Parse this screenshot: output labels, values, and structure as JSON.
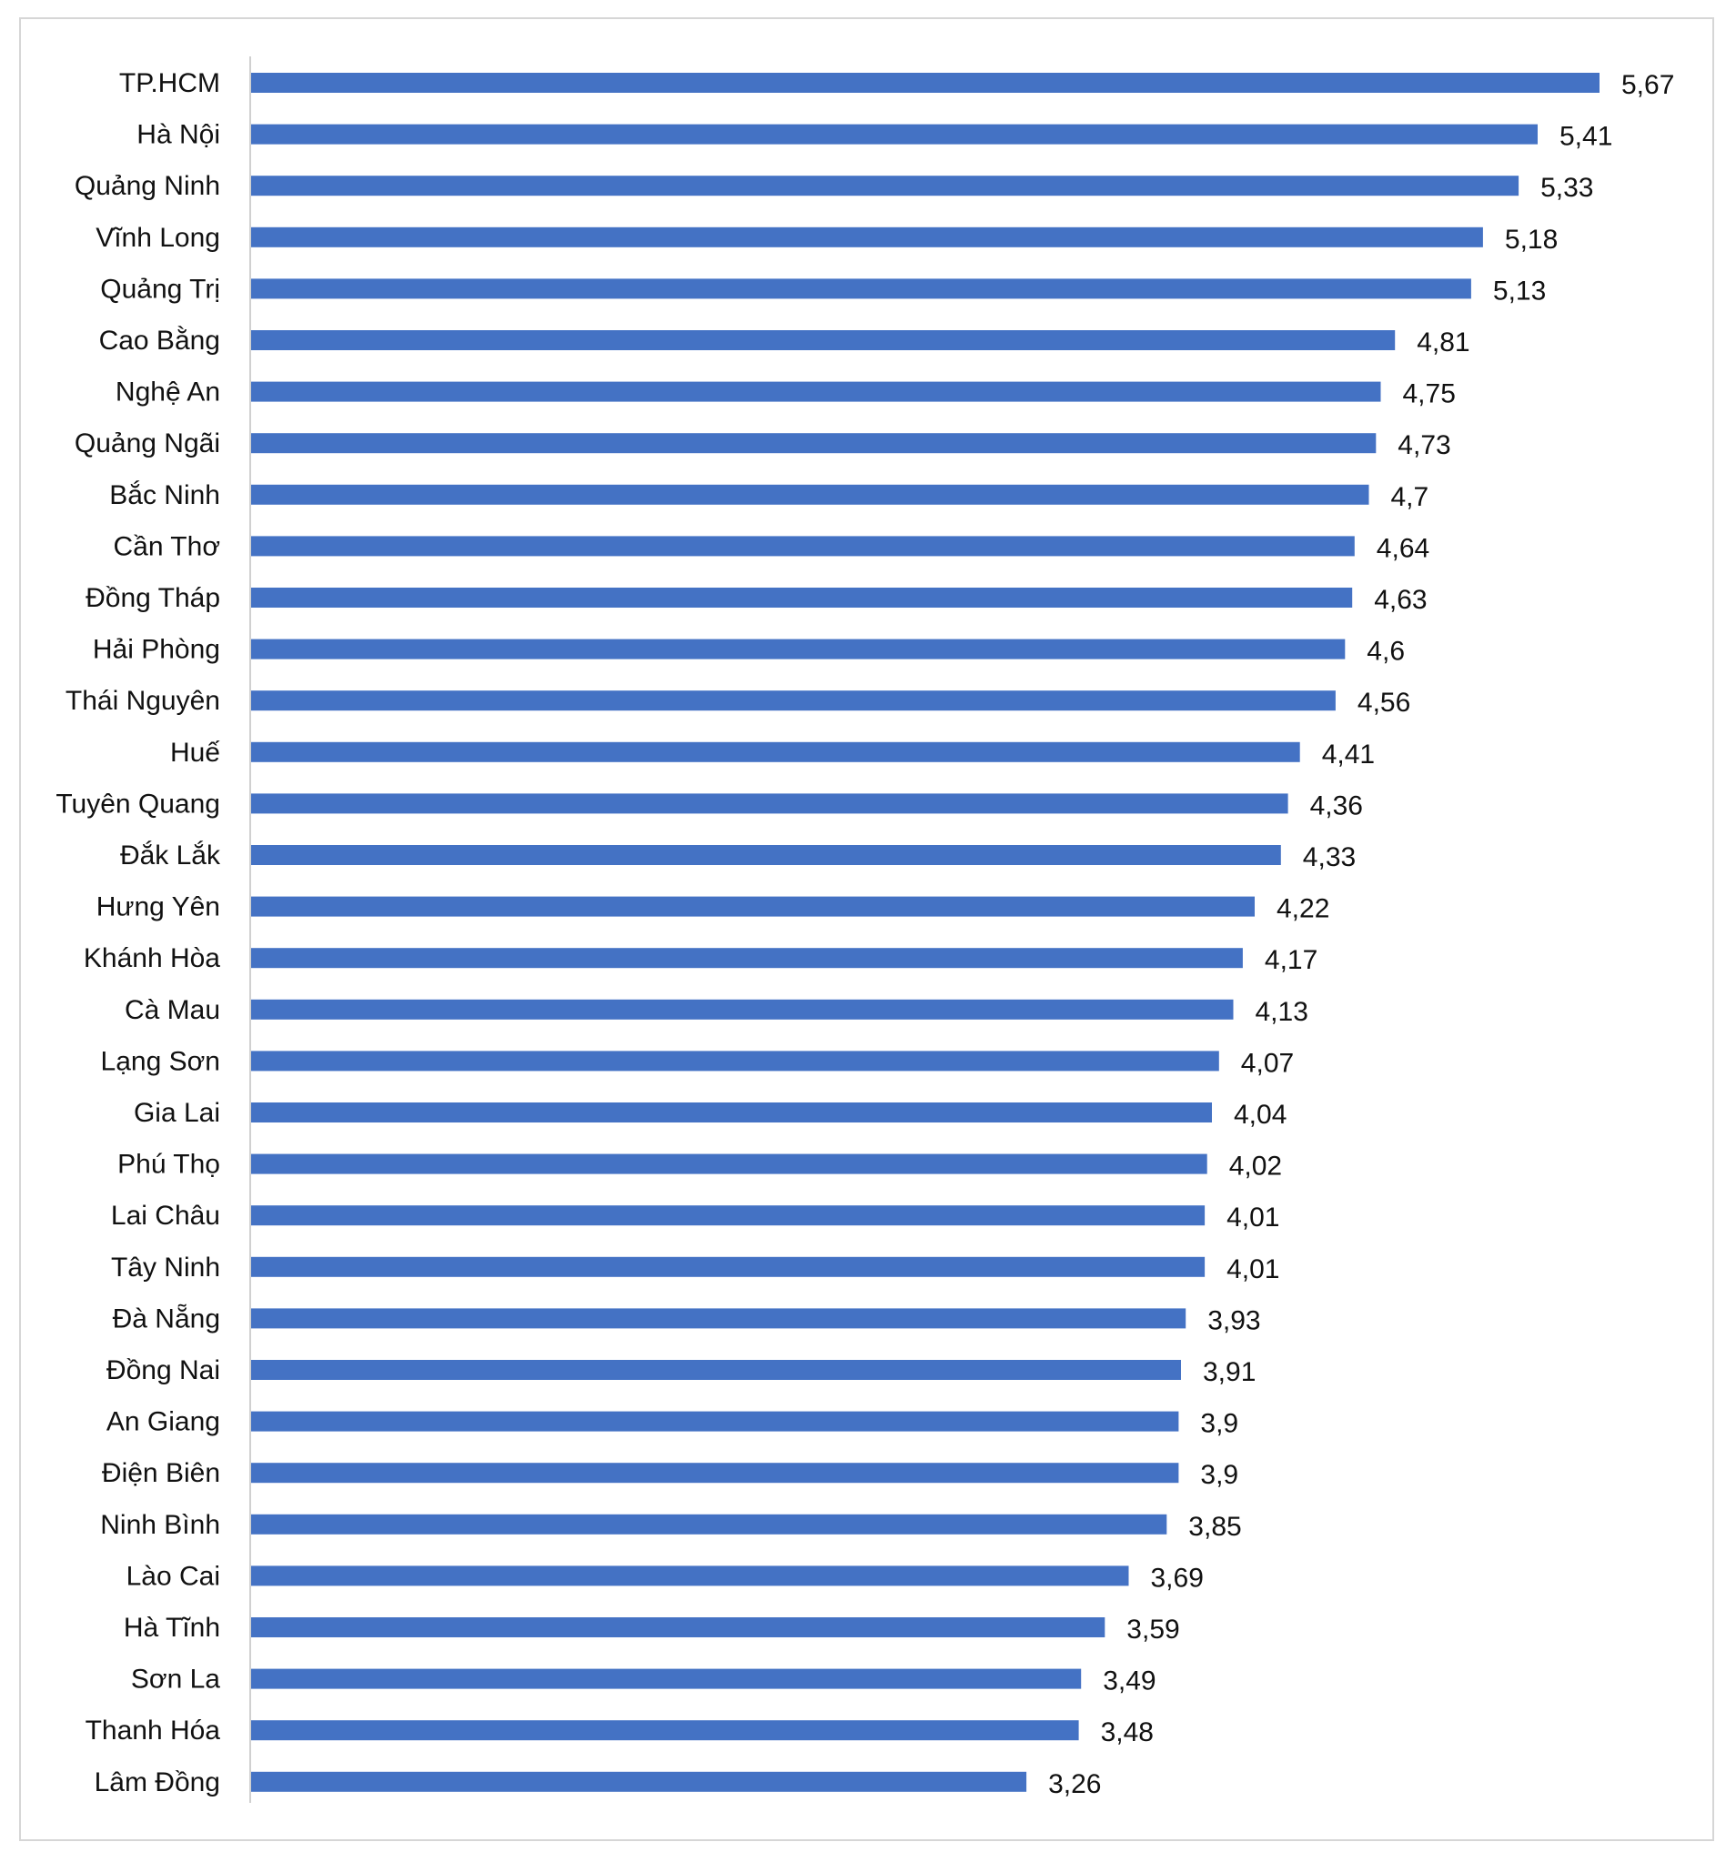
{
  "chart_data": {
    "type": "bar",
    "orientation": "horizontal",
    "categories": [
      "TP.HCM",
      "Hà Nội",
      "Quảng Ninh",
      "Vĩnh Long",
      "Quảng Trị",
      "Cao Bằng",
      "Nghệ An",
      "Quảng Ngãi",
      "Bắc Ninh",
      "Cần Thơ",
      "Đồng Tháp",
      "Hải Phòng",
      "Thái Nguyên",
      "Huế",
      "Tuyên Quang",
      "Đắk Lắk",
      "Hưng Yên",
      "Khánh Hòa",
      "Cà Mau",
      "Lạng Sơn",
      "Gia Lai",
      "Phú Thọ",
      "Lai Châu",
      "Tây Ninh",
      "Đà Nẵng",
      "Đồng Nai",
      "An Giang",
      "Điện Biên",
      "Ninh Bình",
      "Lào Cai",
      "Hà Tĩnh",
      "Sơn La",
      "Thanh Hóa",
      "Lâm Đồng"
    ],
    "values": [
      5.67,
      5.41,
      5.33,
      5.18,
      5.13,
      4.81,
      4.75,
      4.73,
      4.7,
      4.64,
      4.63,
      4.6,
      4.56,
      4.41,
      4.36,
      4.33,
      4.22,
      4.17,
      4.13,
      4.07,
      4.04,
      4.02,
      4.01,
      4.01,
      3.93,
      3.91,
      3.9,
      3.9,
      3.85,
      3.69,
      3.59,
      3.49,
      3.48,
      3.26
    ],
    "data_labels": [
      "5,67",
      "5,41",
      "5,33",
      "5,18",
      "5,13",
      "4,81",
      "4,75",
      "4,73",
      "4,7",
      "4,64",
      "4,63",
      "4,6",
      "4,56",
      "4,41",
      "4,36",
      "4,33",
      "4,22",
      "4,17",
      "4,13",
      "4,07",
      "4,04",
      "4,02",
      "4,01",
      "4,01",
      "3,93",
      "3,91",
      "3,9",
      "3,9",
      "3,85",
      "3,69",
      "3,59",
      "3,49",
      "3,48",
      "3,26"
    ],
    "title": "",
    "xlabel": "",
    "ylabel": "",
    "xlim": [
      0,
      5.67
    ],
    "grid": false,
    "legend": "none",
    "bar_color": "#4472C4",
    "axis_color": "#d0d0d0"
  }
}
